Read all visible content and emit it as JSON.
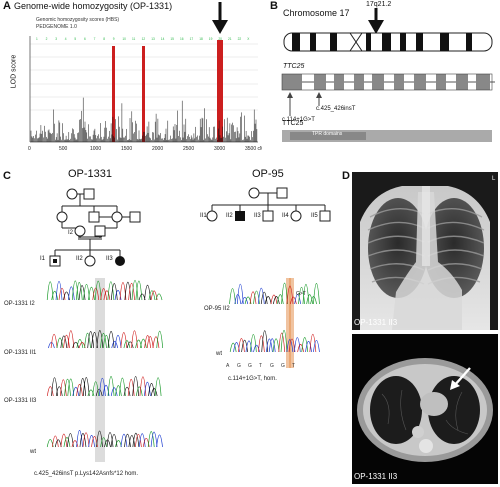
{
  "panel_a": {
    "letter": "A",
    "title": "Genome-wide homozygosity (OP-1331)",
    "legend_line1": "Genomic homozygosity scores (HBS)",
    "legend_line2": "PEDGENOME 1.0",
    "ylabel": "LOD score",
    "xticks": [
      "0",
      "500",
      "1000",
      "1500",
      "2000",
      "2500",
      "3000",
      "3500 cM"
    ],
    "chrom_numbers": [
      "1",
      "2",
      "3",
      "4",
      "5",
      "6",
      "7",
      "8",
      "9",
      "10",
      "11",
      "12",
      "13",
      "14",
      "15",
      "16",
      "17",
      "18",
      "19",
      "20",
      "21",
      "22",
      "X"
    ],
    "colors": {
      "highlight": "#cc1f1f",
      "arrow": "#111111",
      "chrom_label": "#2db84a"
    }
  },
  "panel_b": {
    "letter": "B",
    "chromosome": "Chromosome 17",
    "band": "17q21.2",
    "gene": "TTC25",
    "variant1": "c.425_426insT",
    "variant2": "c.114+1G>T",
    "protein": "TTC25",
    "domain": "TPR domains"
  },
  "panel_c": {
    "letter": "C",
    "fam1": "OP-1331",
    "fam1_members": [
      "I1",
      "II2",
      "II3"
    ],
    "fam1_traces": [
      "OP-1331 I2",
      "OP-1331 II1",
      "OP-1331 II3",
      "wt"
    ],
    "fam1_caption": "c.425_426insT p.Lys142Asnfs*12 hom.",
    "fam2": "OP-95",
    "fam2_members": [
      "II1",
      "II2",
      "II3",
      "II4",
      "II5"
    ],
    "fam2_traces": [
      "OP-95 II2",
      "wt"
    ],
    "fam2_mut": "G>T",
    "fam2_bases": [
      "A",
      "G",
      "G",
      "T",
      "G",
      "G",
      "T"
    ],
    "fam2_caption": "c.114+1G>T, hom."
  },
  "panel_d": {
    "letter": "D",
    "xray_label": "OP-1331 II3",
    "ct_label": "OP-1331 II3",
    "xray_marker": "L"
  }
}
